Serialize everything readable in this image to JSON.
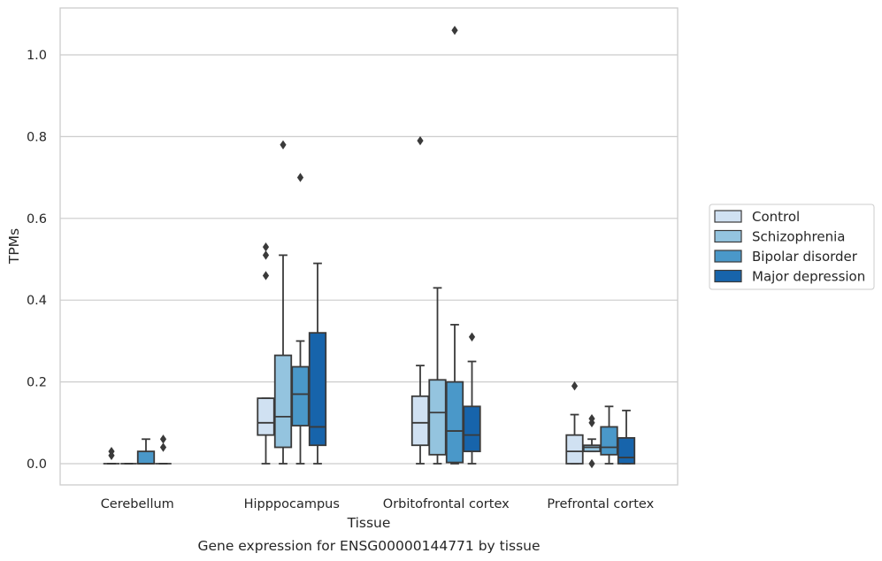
{
  "caption": "Gene expression for ENSG00000144771 by tissue",
  "chart_data": {
    "type": "box",
    "title": "",
    "xlabel": "Tissue",
    "ylabel": "TPMs",
    "ylim": [
      -0.05,
      1.115
    ],
    "yticks": [
      0.0,
      0.2,
      0.4,
      0.6,
      0.8,
      1.0
    ],
    "ytick_labels": [
      "0.0",
      "0.2",
      "0.4",
      "0.6",
      "0.8",
      "1.0"
    ],
    "grid": "horizontal",
    "legend_position": "right-outside",
    "categories": [
      "Cerebellum",
      "Hipppocampus",
      "Orbitofrontal cortex",
      "Prefrontal cortex"
    ],
    "series": [
      {
        "name": "Control",
        "color": "#d0e1f2",
        "boxes": [
          {
            "min": 0.0,
            "q1": 0.0,
            "median": 0.0,
            "q3": 0.0,
            "max": 0.0,
            "outliers": [
              0.02,
              0.03
            ]
          },
          {
            "min": 0.0,
            "q1": 0.07,
            "median": 0.1,
            "q3": 0.16,
            "max": 0.16,
            "outliers": [
              0.46,
              0.51,
              0.53
            ]
          },
          {
            "min": 0.0,
            "q1": 0.045,
            "median": 0.1,
            "q3": 0.165,
            "max": 0.24,
            "outliers": [
              0.79
            ]
          },
          {
            "min": 0.0,
            "q1": 0.0,
            "median": 0.03,
            "q3": 0.07,
            "max": 0.12,
            "outliers": [
              0.19
            ]
          }
        ]
      },
      {
        "name": "Schizophrenia",
        "color": "#94c4df",
        "boxes": [
          {
            "min": 0.0,
            "q1": 0.0,
            "median": 0.0,
            "q3": 0.0,
            "max": 0.0,
            "outliers": []
          },
          {
            "min": 0.0,
            "q1": 0.04,
            "median": 0.115,
            "q3": 0.265,
            "max": 0.51,
            "outliers": [
              0.78
            ]
          },
          {
            "min": 0.0,
            "q1": 0.022,
            "median": 0.125,
            "q3": 0.205,
            "max": 0.43,
            "outliers": []
          },
          {
            "min": 0.03,
            "q1": 0.03,
            "median": 0.04,
            "q3": 0.045,
            "max": 0.06,
            "outliers": [
              0.0,
              0.1,
              0.11
            ]
          }
        ]
      },
      {
        "name": "Bipolar disorder",
        "color": "#4a98c9",
        "boxes": [
          {
            "min": 0.0,
            "q1": 0.0,
            "median": 0.0,
            "q3": 0.03,
            "max": 0.06,
            "outliers": []
          },
          {
            "min": 0.0,
            "q1": 0.093,
            "median": 0.17,
            "q3": 0.237,
            "max": 0.3,
            "outliers": [
              0.7
            ]
          },
          {
            "min": 0.0,
            "q1": 0.003,
            "median": 0.08,
            "q3": 0.2,
            "max": 0.34,
            "outliers": [
              1.06
            ]
          },
          {
            "min": 0.0,
            "q1": 0.022,
            "median": 0.04,
            "q3": 0.09,
            "max": 0.14,
            "outliers": []
          }
        ]
      },
      {
        "name": "Major depression",
        "color": "#1764ab",
        "boxes": [
          {
            "min": 0.0,
            "q1": 0.0,
            "median": 0.0,
            "q3": 0.0,
            "max": 0.0,
            "outliers": [
              0.04,
              0.06
            ]
          },
          {
            "min": 0.0,
            "q1": 0.045,
            "median": 0.09,
            "q3": 0.32,
            "max": 0.49,
            "outliers": []
          },
          {
            "min": 0.0,
            "q1": 0.03,
            "median": 0.07,
            "q3": 0.14,
            "max": 0.25,
            "outliers": [
              0.31
            ]
          },
          {
            "min": 0.0,
            "q1": 0.0,
            "median": 0.015,
            "q3": 0.063,
            "max": 0.13,
            "outliers": []
          }
        ]
      }
    ]
  }
}
